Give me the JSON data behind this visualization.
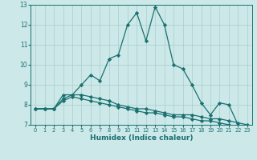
{
  "xlabel": "Humidex (Indice chaleur)",
  "xlim": [
    -0.5,
    23.5
  ],
  "ylim": [
    7,
    13
  ],
  "yticks": [
    7,
    8,
    9,
    10,
    11,
    12,
    13
  ],
  "xticks": [
    0,
    1,
    2,
    3,
    4,
    5,
    6,
    7,
    8,
    9,
    10,
    11,
    12,
    13,
    14,
    15,
    16,
    17,
    18,
    19,
    20,
    21,
    22,
    23
  ],
  "background_color": "#cce8e8",
  "grid_color": "#aacece",
  "line_color": "#1a7070",
  "series": [
    [
      7.8,
      7.8,
      7.8,
      8.5,
      8.5,
      9.0,
      9.5,
      9.2,
      10.3,
      10.5,
      12.0,
      12.6,
      11.2,
      12.9,
      12.0,
      10.0,
      9.8,
      9.0,
      8.1,
      7.5,
      8.1,
      8.0,
      7.0,
      6.8
    ],
    [
      7.8,
      7.8,
      7.8,
      8.3,
      8.5,
      8.5,
      8.4,
      8.3,
      8.2,
      8.0,
      7.9,
      7.8,
      7.8,
      7.7,
      7.6,
      7.5,
      7.5,
      7.5,
      7.4,
      7.3,
      7.3,
      7.2,
      7.1,
      7.0
    ],
    [
      7.8,
      7.8,
      7.8,
      8.2,
      8.4,
      8.3,
      8.2,
      8.1,
      8.0,
      7.9,
      7.8,
      7.7,
      7.6,
      7.6,
      7.5,
      7.4,
      7.4,
      7.3,
      7.2,
      7.2,
      7.1,
      7.0,
      6.9,
      6.8
    ]
  ],
  "marker": "D",
  "markersize": 2.2,
  "linewidth": 0.9,
  "xlabel_fontsize": 6.5,
  "tick_labelsize": 5.5,
  "xlabel_fontweight": "bold"
}
